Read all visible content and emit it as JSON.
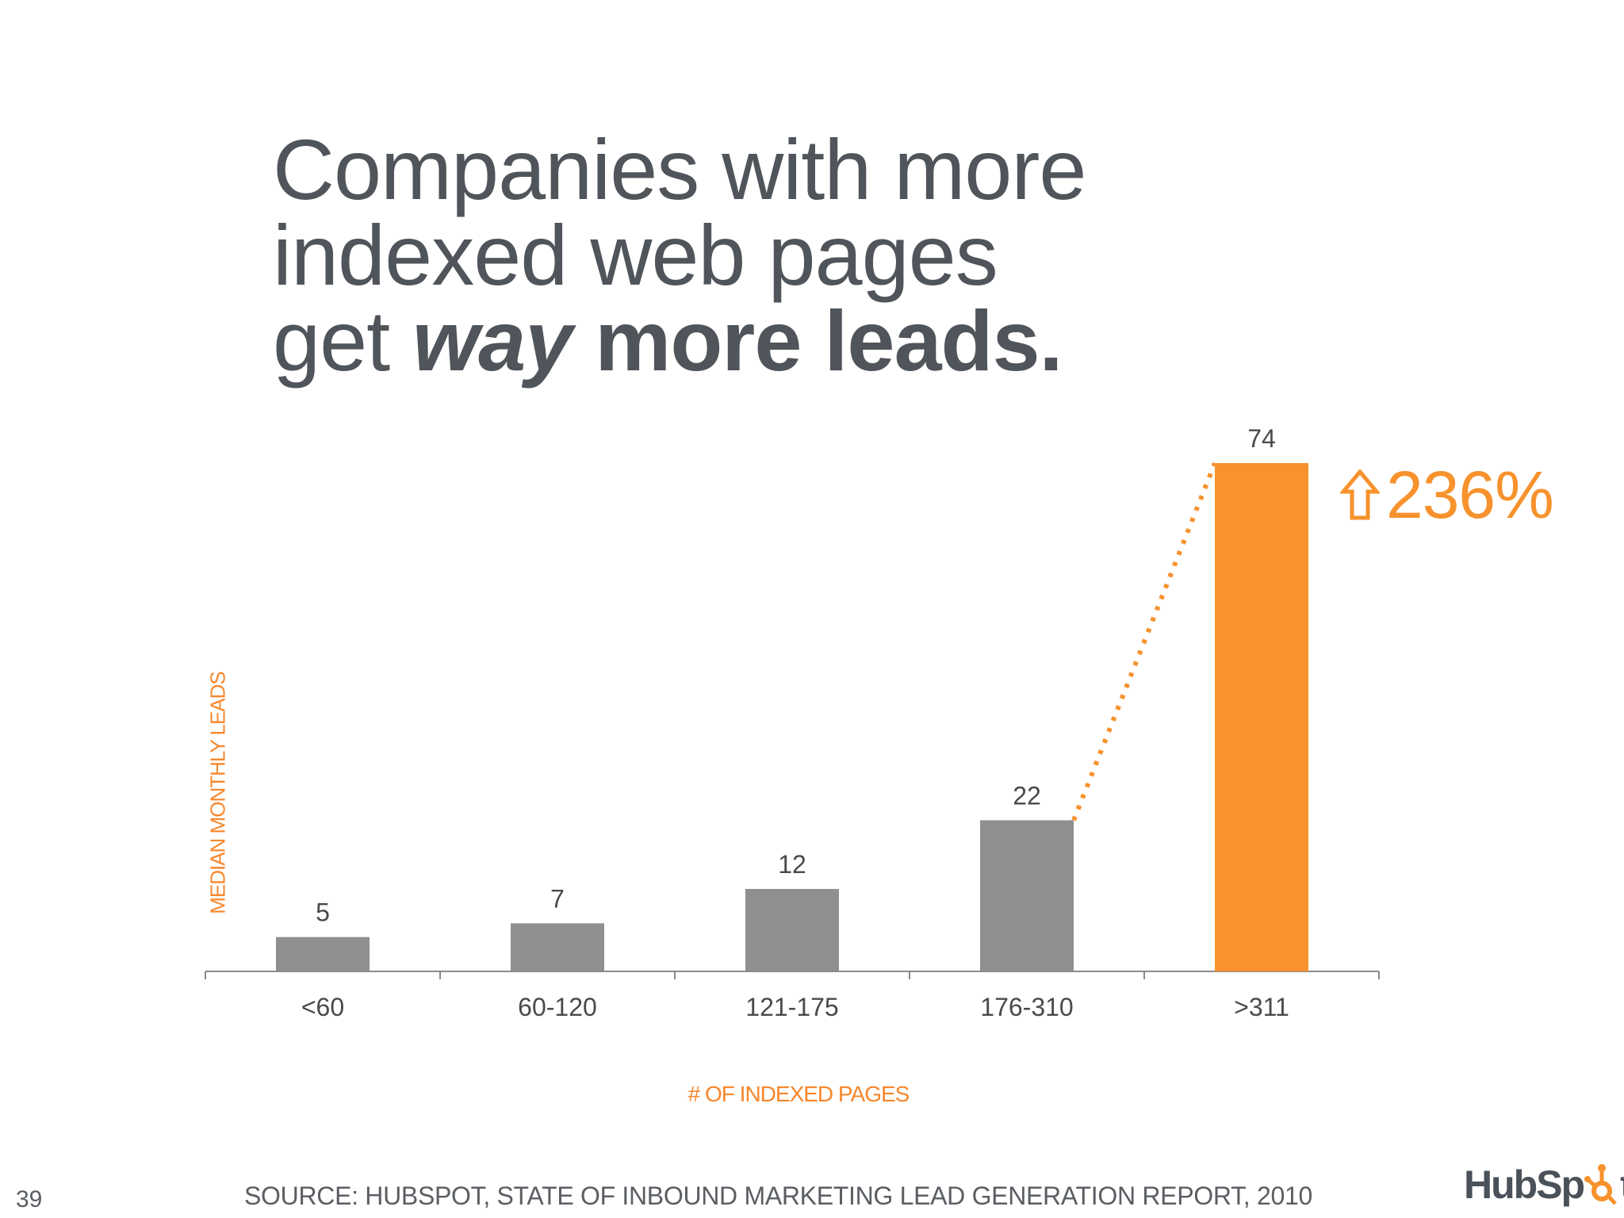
{
  "slide": {
    "title_line1": "Companies with more",
    "title_line2": "indexed web pages",
    "title_line3_prefix": "get ",
    "title_line3_italic": "way",
    "title_line3_bold": " more leads.",
    "page_number": "39",
    "source": "SOURCE: HUBSPOT, STATE OF INBOUND MARKETING LEAD GENERATION REPORT, 2010",
    "logo_prefix": "HubSp",
    "logo_suffix": "t",
    "callout": "236%",
    "callout_icon": "up-arrow-icon",
    "colors": {
      "highlight": "#f7922d",
      "bar": "#8f8e91",
      "title": "#50555b",
      "axis_label": "#f7872c"
    }
  },
  "chart_data": {
    "type": "bar",
    "categories": [
      "<60",
      "60-120",
      "121-175",
      "176-310",
      ">311"
    ],
    "values": [
      5,
      7,
      12,
      22,
      74
    ],
    "data_labels": [
      "5",
      "7",
      "12",
      "22",
      "74"
    ],
    "highlight_index": 4,
    "xlabel": "# OF INDEXED PAGES",
    "ylabel": "MEDIAN MONTHLY LEADS",
    "ylim": [
      0,
      74
    ],
    "grid": false,
    "legend": "none",
    "annotation": "dotted trend line from 22 to 74, labeled 236% increase"
  }
}
